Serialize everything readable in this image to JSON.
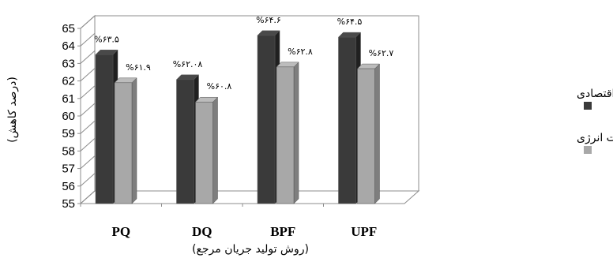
{
  "chart_data": {
    "type": "bar",
    "categories": [
      "PQ",
      "DQ",
      "BPF",
      "UPF"
    ],
    "series": [
      {
        "name": "کاهش هزینه اقتصادی",
        "values": [
          63.5,
          62.08,
          64.6,
          64.5
        ],
        "labels": [
          "%۶۳.۵",
          "%۶۲.۰۸",
          "%۶۴.۶",
          "%۶۴.۵"
        ],
        "color": "#3a3a3a"
      },
      {
        "name": "کاهش تلفات انرژی",
        "values": [
          61.9,
          60.8,
          62.8,
          62.7
        ],
        "labels": [
          "%۶۱.۹",
          "%۶۰.۸",
          "%۶۲.۸",
          "%۶۲.۷"
        ],
        "color": "#a8a8a8"
      }
    ],
    "xlabel": "(روش تولید جریان مرجع)",
    "ylabel": "(درصد کاهش)",
    "ylim": [
      55,
      65
    ],
    "yticks": [
      55,
      56,
      57,
      58,
      59,
      60,
      61,
      62,
      63,
      64,
      65
    ],
    "grid": false,
    "legend_position": "right",
    "style": "3d-bar"
  }
}
